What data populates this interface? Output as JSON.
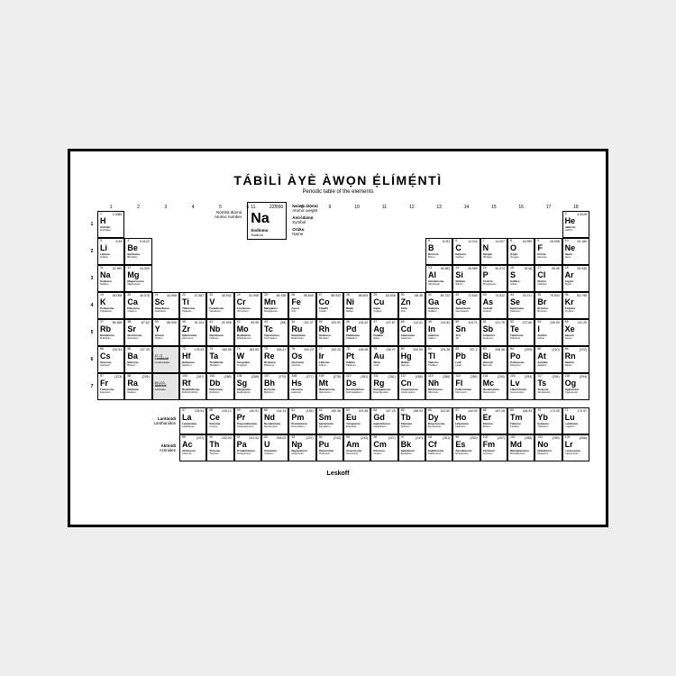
{
  "colors": {
    "page_bg": "#eeeeee",
    "poster_bg": "#ffffff",
    "border": "#000000",
    "shaded": "#e5e5e5"
  },
  "title": {
    "main": "TÁBÌLÌ ÀYÈ ÀWỌN Ẹ́LÍMẸ́NTÌ",
    "sub": "Periodic table of the elements"
  },
  "legend": {
    "atomic_number_label": "Nọ́mbà átọ́mù",
    "atomic_number_sub": "Atomic number",
    "atomic_weight_label": "Ìwúwo átọ́mù",
    "atomic_weight_sub": "Atomic weight",
    "symbol_label": "Àmì-ìdámọ̀",
    "symbol_sub": "Symbol",
    "name_label": "Orúkọ",
    "name_sub": "Name",
    "sample": {
      "num": "11",
      "wt": "22.990",
      "sym": "Na",
      "name1": "Sodíomu",
      "name2": "Sodium"
    }
  },
  "groups": [
    "1",
    "2",
    "3",
    "4",
    "5",
    "6",
    "7",
    "8",
    "9",
    "10",
    "11",
    "12",
    "13",
    "14",
    "15",
    "16",
    "17",
    "18"
  ],
  "periods": [
    "1",
    "2",
    "3",
    "4",
    "5",
    "6",
    "7"
  ],
  "placeholders": {
    "lan": {
      "range": "57-71",
      "name1": "Lantànìdì",
      "name2": "Lanthanides"
    },
    "act": {
      "range": "89-103",
      "name1": "Aktinìdì",
      "name2": "Actinides"
    }
  },
  "series_labels": {
    "lan": {
      "b": "Lantànìdì",
      "s": "Lanthanides"
    },
    "act": {
      "b": "Aktinìdì",
      "s": "Actinides"
    }
  },
  "footer": "Leskoff",
  "elements": [
    {
      "n": 1,
      "s": "H",
      "w": "1.0080",
      "m1": "Áídrójìn",
      "m2": "Hydrogen",
      "p": 1,
      "g": 1
    },
    {
      "n": 2,
      "s": "He",
      "w": "4.0026",
      "m1": "Hélíomu",
      "m2": "Helium",
      "p": 1,
      "g": 18
    },
    {
      "n": 3,
      "s": "Li",
      "w": "6.94",
      "m1": "Lítíomu",
      "m2": "Lithium",
      "p": 2,
      "g": 1
    },
    {
      "n": 4,
      "s": "Be",
      "w": "9.0122",
      "m1": "Bẹrílíomu",
      "m2": "Beryllium",
      "p": 2,
      "g": 2
    },
    {
      "n": 5,
      "s": "B",
      "w": "10.81",
      "m1": "Bóróònì",
      "m2": "Boron",
      "p": 2,
      "g": 13
    },
    {
      "n": 6,
      "s": "C",
      "w": "12.011",
      "m1": "Kárbónì",
      "m2": "Carbon",
      "p": 2,
      "g": 14
    },
    {
      "n": 7,
      "s": "N",
      "w": "14.007",
      "m1": "Nítrójìn",
      "m2": "Nitrogen",
      "p": 2,
      "g": 15
    },
    {
      "n": 8,
      "s": "O",
      "w": "15.999",
      "m1": "Ọ́síjìn",
      "m2": "Oxygen",
      "p": 2,
      "g": 16
    },
    {
      "n": 9,
      "s": "F",
      "w": "18.998",
      "m1": "Flórínì",
      "m2": "Fluorine",
      "p": 2,
      "g": 17
    },
    {
      "n": 10,
      "s": "Ne",
      "w": "20.180",
      "m1": "Néónì",
      "m2": "Neon",
      "p": 2,
      "g": 18
    },
    {
      "n": 11,
      "s": "Na",
      "w": "22.990",
      "m1": "Sodíomu",
      "m2": "Sodium",
      "p": 3,
      "g": 1
    },
    {
      "n": 12,
      "s": "Mg",
      "w": "24.305",
      "m1": "Magnésíomu",
      "m2": "Magnesium",
      "p": 3,
      "g": 2
    },
    {
      "n": 13,
      "s": "Al",
      "w": "26.982",
      "m1": "Alùmíníomu",
      "m2": "Aluminium",
      "p": 3,
      "g": 13
    },
    {
      "n": 14,
      "s": "Si",
      "w": "28.085",
      "m1": "Sílíkọ̀nì",
      "m2": "Silicon",
      "p": 3,
      "g": 14
    },
    {
      "n": 15,
      "s": "P",
      "w": "30.974",
      "m1": "Fósfórù",
      "m2": "Phosphorus",
      "p": 3,
      "g": 15
    },
    {
      "n": 16,
      "s": "S",
      "w": "32.06",
      "m1": "Sọ́lfúrù",
      "m2": "Sulfur",
      "p": 3,
      "g": 16
    },
    {
      "n": 17,
      "s": "Cl",
      "w": "35.45",
      "m1": "Klórínì",
      "m2": "Chlorine",
      "p": 3,
      "g": 17
    },
    {
      "n": 18,
      "s": "Ar",
      "w": "39.948",
      "m1": "Árgónì",
      "m2": "Argon",
      "p": 3,
      "g": 18
    },
    {
      "n": 19,
      "s": "K",
      "w": "39.098",
      "m1": "Potásíomu",
      "m2": "Potassium",
      "p": 4,
      "g": 1
    },
    {
      "n": 20,
      "s": "Ca",
      "w": "40.078",
      "m1": "Kálsíomu",
      "m2": "Calcium",
      "p": 4,
      "g": 2
    },
    {
      "n": 21,
      "s": "Sc",
      "w": "44.956",
      "m1": "Skándíomu",
      "m2": "Scandium",
      "p": 4,
      "g": 3
    },
    {
      "n": 22,
      "s": "Ti",
      "w": "47.867",
      "m1": "Titáníomu",
      "m2": "Titanium",
      "p": 4,
      "g": 4
    },
    {
      "n": 23,
      "s": "V",
      "w": "50.942",
      "m1": "Fanádíomu",
      "m2": "Vanadium",
      "p": 4,
      "g": 5
    },
    {
      "n": 24,
      "s": "Cr",
      "w": "51.996",
      "m1": "Krómíomu",
      "m2": "Chromium",
      "p": 4,
      "g": 6
    },
    {
      "n": 25,
      "s": "Mn",
      "w": "54.938",
      "m1": "Mángánísì",
      "m2": "Manganese",
      "p": 4,
      "g": 7
    },
    {
      "n": 26,
      "s": "Fe",
      "w": "55.845",
      "m1": "Áyọ̀nì",
      "m2": "Iron",
      "p": 4,
      "g": 8
    },
    {
      "n": 27,
      "s": "Co",
      "w": "58.933",
      "m1": "Kóbáltì",
      "m2": "Cobalt",
      "p": 4,
      "g": 9
    },
    {
      "n": 28,
      "s": "Ni",
      "w": "58.693",
      "m1": "Níkẹ́lì",
      "m2": "Nickel",
      "p": 4,
      "g": 10
    },
    {
      "n": 29,
      "s": "Cu",
      "w": "63.546",
      "m1": "Kọ́pà",
      "m2": "Copper",
      "p": 4,
      "g": 11
    },
    {
      "n": 30,
      "s": "Zn",
      "w": "65.38",
      "m1": "Sínkì",
      "m2": "Zinc",
      "p": 4,
      "g": 12
    },
    {
      "n": 31,
      "s": "Ga",
      "w": "69.723",
      "m1": "Gálíomu",
      "m2": "Gallium",
      "p": 4,
      "g": 13
    },
    {
      "n": 32,
      "s": "Ge",
      "w": "72.630",
      "m1": "Jẹ́mẹ́níomu",
      "m2": "Germanium",
      "p": 4,
      "g": 14
    },
    {
      "n": 33,
      "s": "As",
      "w": "74.922",
      "m1": "Áséníkì",
      "m2": "Arsenic",
      "p": 4,
      "g": 15
    },
    {
      "n": 34,
      "s": "Se",
      "w": "78.971",
      "m1": "Sẹléníomu",
      "m2": "Selenium",
      "p": 4,
      "g": 16
    },
    {
      "n": 35,
      "s": "Br",
      "w": "79.904",
      "m1": "Brómínì",
      "m2": "Bromine",
      "p": 4,
      "g": 17
    },
    {
      "n": 36,
      "s": "Kr",
      "w": "83.798",
      "m1": "Kríptónì",
      "m2": "Krypton",
      "p": 4,
      "g": 18
    },
    {
      "n": 37,
      "s": "Rb",
      "w": "85.468",
      "m1": "Rubídíomu",
      "m2": "Rubidium",
      "p": 5,
      "g": 1
    },
    {
      "n": 38,
      "s": "Sr",
      "w": "87.62",
      "m1": "Stróntíomu",
      "m2": "Strontium",
      "p": 5,
      "g": 2
    },
    {
      "n": 39,
      "s": "Y",
      "w": "88.906",
      "m1": "Ítríomu",
      "m2": "Yttrium",
      "p": 5,
      "g": 3
    },
    {
      "n": 40,
      "s": "Zr",
      "w": "91.224",
      "m1": "Sẹ́kóníomu",
      "m2": "Zirconium",
      "p": 5,
      "g": 4
    },
    {
      "n": 41,
      "s": "Nb",
      "w": "92.906",
      "m1": "Naịóbíomu",
      "m2": "Niobium",
      "p": 5,
      "g": 5
    },
    {
      "n": 42,
      "s": "Mo",
      "w": "95.95",
      "m1": "Molíbdénù",
      "m2": "Molybdenum",
      "p": 5,
      "g": 6
    },
    {
      "n": 43,
      "s": "Tc",
      "w": "(98)",
      "m1": "Tẹknísíomu",
      "m2": "Technetium",
      "p": 5,
      "g": 7
    },
    {
      "n": 44,
      "s": "Ru",
      "w": "101.07",
      "m1": "Rutẹ́níomu",
      "m2": "Ruthenium",
      "p": 5,
      "g": 8
    },
    {
      "n": 45,
      "s": "Rh",
      "w": "102.91",
      "m1": "Ródíomu",
      "m2": "Rhodium",
      "p": 5,
      "g": 9
    },
    {
      "n": 46,
      "s": "Pd",
      "w": "106.42",
      "m1": "Paládíomu",
      "m2": "Palladium",
      "p": 5,
      "g": 10
    },
    {
      "n": 47,
      "s": "Ag",
      "w": "107.87",
      "m1": "Fàdákà",
      "m2": "Silver",
      "p": 5,
      "g": 11
    },
    {
      "n": 48,
      "s": "Cd",
      "w": "112.41",
      "m1": "Kádmíomu",
      "m2": "Cadmium",
      "p": 5,
      "g": 12
    },
    {
      "n": 49,
      "s": "In",
      "w": "114.82",
      "m1": "Índíomu",
      "m2": "Indium",
      "p": 5,
      "g": 13
    },
    {
      "n": 50,
      "s": "Sn",
      "w": "118.71",
      "m1": "Tínì",
      "m2": "Tin",
      "p": 5,
      "g": 14
    },
    {
      "n": 51,
      "s": "Sb",
      "w": "121.76",
      "m1": "Ántímónì",
      "m2": "Antimony",
      "p": 5,
      "g": 15
    },
    {
      "n": 52,
      "s": "Te",
      "w": "127.60",
      "m1": "Tẹlúríomu",
      "m2": "Tellurium",
      "p": 5,
      "g": 16
    },
    {
      "n": 53,
      "s": "I",
      "w": "126.90",
      "m1": "Aịódínì",
      "m2": "Iodine",
      "p": 5,
      "g": 17
    },
    {
      "n": 54,
      "s": "Xe",
      "w": "131.29",
      "m1": "Sénónì",
      "m2": "Xenon",
      "p": 5,
      "g": 18
    },
    {
      "n": 55,
      "s": "Cs",
      "w": "132.91",
      "m1": "Sésíomu",
      "m2": "Caesium",
      "p": 6,
      "g": 1
    },
    {
      "n": 56,
      "s": "Ba",
      "w": "137.33",
      "m1": "Báríomu",
      "m2": "Barium",
      "p": 6,
      "g": 2
    },
    {
      "n": 72,
      "s": "Hf",
      "w": "178.49",
      "m1": "Háfníomu",
      "m2": "Hafnium",
      "p": 6,
      "g": 4
    },
    {
      "n": 73,
      "s": "Ta",
      "w": "180.95",
      "m1": "Tántálúmù",
      "m2": "Tantalum",
      "p": 6,
      "g": 5
    },
    {
      "n": 74,
      "s": "W",
      "w": "183.84",
      "m1": "Túngstẹ́nì",
      "m2": "Tungsten",
      "p": 6,
      "g": 6
    },
    {
      "n": 75,
      "s": "Re",
      "w": "186.21",
      "m1": "Réníomu",
      "m2": "Rhenium",
      "p": 6,
      "g": 7
    },
    {
      "n": 76,
      "s": "Os",
      "w": "190.23",
      "m1": "Ọ́smíomu",
      "m2": "Osmium",
      "p": 6,
      "g": 8
    },
    {
      "n": 77,
      "s": "Ir",
      "w": "192.22",
      "m1": "Irídíomu",
      "m2": "Iridium",
      "p": 6,
      "g": 9
    },
    {
      "n": 78,
      "s": "Pt",
      "w": "195.08",
      "m1": "Pílátínì",
      "m2": "Platinum",
      "p": 6,
      "g": 10
    },
    {
      "n": 79,
      "s": "Au",
      "w": "196.97",
      "m1": "Wúrà",
      "m2": "Gold",
      "p": 6,
      "g": 11
    },
    {
      "n": 80,
      "s": "Hg",
      "w": "200.59",
      "m1": "Mẹ́kúrì",
      "m2": "Mercury",
      "p": 6,
      "g": 12
    },
    {
      "n": 81,
      "s": "Tl",
      "w": "204.38",
      "m1": "Tálíomu",
      "m2": "Thallium",
      "p": 6,
      "g": 13
    },
    {
      "n": 82,
      "s": "Pb",
      "w": "207.2",
      "m1": "Lẹ́dì",
      "m2": "Lead",
      "p": 6,
      "g": 14
    },
    {
      "n": 83,
      "s": "Bi",
      "w": "208.98",
      "m1": "Bísmọ́tì",
      "m2": "Bismuth",
      "p": 6,
      "g": 15
    },
    {
      "n": 84,
      "s": "Po",
      "w": "(209)",
      "m1": "Polóníomu",
      "m2": "Polonium",
      "p": 6,
      "g": 16
    },
    {
      "n": 85,
      "s": "At",
      "w": "(210)",
      "m1": "Ástátínì",
      "m2": "Astatine",
      "p": 6,
      "g": 17
    },
    {
      "n": 86,
      "s": "Rn",
      "w": "(222)",
      "m1": "Rádónì",
      "m2": "Radon",
      "p": 6,
      "g": 18
    },
    {
      "n": 87,
      "s": "Fr",
      "w": "(223)",
      "m1": "Fránsíomu",
      "m2": "Francium",
      "p": 7,
      "g": 1
    },
    {
      "n": 88,
      "s": "Ra",
      "w": "(226)",
      "m1": "Rédíomu",
      "m2": "Radium",
      "p": 7,
      "g": 2
    },
    {
      "n": 104,
      "s": "Rf",
      "w": "(267)",
      "m1": "Rudẹfódíomu",
      "m2": "Rutherfordium",
      "p": 7,
      "g": 4
    },
    {
      "n": 105,
      "s": "Db",
      "w": "(268)",
      "m1": "Dúbníomu",
      "m2": "Dubnium",
      "p": 7,
      "g": 5
    },
    {
      "n": 106,
      "s": "Sg",
      "w": "(269)",
      "m1": "Síbọ́gíomu",
      "m2": "Seaborgium",
      "p": 7,
      "g": 6
    },
    {
      "n": 107,
      "s": "Bh",
      "w": "(270)",
      "m1": "Bóríomu",
      "m2": "Bohrium",
      "p": 7,
      "g": 7
    },
    {
      "n": 108,
      "s": "Hs",
      "w": "(277)",
      "m1": "Hásíomu",
      "m2": "Hassium",
      "p": 7,
      "g": 8
    },
    {
      "n": 109,
      "s": "Mt",
      "w": "(278)",
      "m1": "Maịtnẹ́ríomu",
      "m2": "Meitnerium",
      "p": 7,
      "g": 9
    },
    {
      "n": 110,
      "s": "Ds",
      "w": "(281)",
      "m1": "Damstádíomu",
      "m2": "Darmstadtium",
      "p": 7,
      "g": 10
    },
    {
      "n": 111,
      "s": "Rg",
      "w": "(282)",
      "m1": "Rẹntgẹ́níomu",
      "m2": "Roentgenium",
      "p": 7,
      "g": 11
    },
    {
      "n": 112,
      "s": "Cn",
      "w": "(285)",
      "m1": "Kopẹnísíomu",
      "m2": "Copernicium",
      "p": 7,
      "g": 12
    },
    {
      "n": 113,
      "s": "Nh",
      "w": "(286)",
      "m1": "Nìhóníomu",
      "m2": "Nihonium",
      "p": 7,
      "g": 13
    },
    {
      "n": 114,
      "s": "Fl",
      "w": "(289)",
      "m1": "Fẹlẹ́róvíomu",
      "m2": "Flerovium",
      "p": 7,
      "g": 14
    },
    {
      "n": 115,
      "s": "Mc",
      "w": "(290)",
      "m1": "Mọskóvíomu",
      "m2": "Moscovium",
      "p": 7,
      "g": 15
    },
    {
      "n": 116,
      "s": "Lv",
      "w": "(293)",
      "m1": "Lifẹmóríomu",
      "m2": "Livermorium",
      "p": 7,
      "g": 16
    },
    {
      "n": 117,
      "s": "Ts",
      "w": "(294)",
      "m1": "Tẹnẹsínì",
      "m2": "Tennessine",
      "p": 7,
      "g": 17
    },
    {
      "n": 118,
      "s": "Og",
      "w": "(294)",
      "m1": "Ogánẹ́sọ̀nì",
      "m2": "Oganesson",
      "p": 7,
      "g": 18
    }
  ],
  "lanthanides": [
    {
      "n": 57,
      "s": "La",
      "w": "138.91",
      "m1": "Lantánúmù",
      "m2": "Lanthanum"
    },
    {
      "n": 58,
      "s": "Ce",
      "w": "140.12",
      "m1": "Séríomu",
      "m2": "Cerium"
    },
    {
      "n": 59,
      "s": "Pr",
      "w": "140.91",
      "m1": "Praseodímíomu",
      "m2": "Praseodymium"
    },
    {
      "n": 60,
      "s": "Nd",
      "w": "144.24",
      "m1": "Neodímíomu",
      "m2": "Neodymium"
    },
    {
      "n": 61,
      "s": "Pm",
      "w": "(145)",
      "m1": "Promẹ́tíomu",
      "m2": "Promethium"
    },
    {
      "n": 62,
      "s": "Sm",
      "w": "150.36",
      "m1": "Samáríomu",
      "m2": "Samarium"
    },
    {
      "n": 63,
      "s": "Eu",
      "w": "151.96",
      "m1": "Yurópíomu",
      "m2": "Europium"
    },
    {
      "n": 64,
      "s": "Gd",
      "w": "157.25",
      "m1": "Gadolíníomu",
      "m2": "Gadolinium"
    },
    {
      "n": 65,
      "s": "Tb",
      "w": "158.93",
      "m1": "Tẹ́bíomu",
      "m2": "Terbium"
    },
    {
      "n": 66,
      "s": "Dy",
      "w": "162.50",
      "m1": "Disprósíomu",
      "m2": "Dysprosium"
    },
    {
      "n": 67,
      "s": "Ho",
      "w": "164.93",
      "m1": "Hólmíomu",
      "m2": "Holmium"
    },
    {
      "n": 68,
      "s": "Er",
      "w": "167.26",
      "m1": "Ẹ́bíomu",
      "m2": "Erbium"
    },
    {
      "n": 69,
      "s": "Tm",
      "w": "168.93",
      "m1": "Túlíomu",
      "m2": "Thulium"
    },
    {
      "n": 70,
      "s": "Yb",
      "w": "173.05",
      "m1": "Itẹbíomu",
      "m2": "Ytterbium"
    },
    {
      "n": 71,
      "s": "Lu",
      "w": "174.97",
      "m1": "Lutẹ́tíomu",
      "m2": "Lutetium"
    }
  ],
  "actinides": [
    {
      "n": 89,
      "s": "Ac",
      "w": "(227)",
      "m1": "Aktíníomu",
      "m2": "Actinium"
    },
    {
      "n": 90,
      "s": "Th",
      "w": "232.04",
      "m1": "Tóríomu",
      "m2": "Thorium"
    },
    {
      "n": 91,
      "s": "Pa",
      "w": "231.04",
      "m1": "Protaktíníomu",
      "m2": "Protactinium"
    },
    {
      "n": 92,
      "s": "U",
      "w": "238.03",
      "m1": "Uréníomu",
      "m2": "Uranium"
    },
    {
      "n": 93,
      "s": "Np",
      "w": "(237)",
      "m1": "Nẹptúníomu",
      "m2": "Neptunium"
    },
    {
      "n": 94,
      "s": "Pu",
      "w": "(244)",
      "m1": "Plutóníomu",
      "m2": "Plutonium"
    },
    {
      "n": 95,
      "s": "Am",
      "w": "(243)",
      "m1": "Amẹrísíomu",
      "m2": "Americium"
    },
    {
      "n": 96,
      "s": "Cm",
      "w": "(247)",
      "m1": "Kúríomu",
      "m2": "Curium"
    },
    {
      "n": 97,
      "s": "Bk",
      "w": "(247)",
      "m1": "Bẹkẹ́líomu",
      "m2": "Berkelium"
    },
    {
      "n": 98,
      "s": "Cf",
      "w": "(251)",
      "m1": "Kalifóníomu",
      "m2": "Californium"
    },
    {
      "n": 99,
      "s": "Es",
      "w": "(252)",
      "m1": "Aịnstáníomu",
      "m2": "Einsteinium"
    },
    {
      "n": 100,
      "s": "Fm",
      "w": "(257)",
      "m1": "Fẹ́míomu",
      "m2": "Fermium"
    },
    {
      "n": 101,
      "s": "Md",
      "w": "(258)",
      "m1": "Mẹndẹlẹ́víomu",
      "m2": "Mendelevium"
    },
    {
      "n": 102,
      "s": "No",
      "w": "(259)",
      "m1": "Nobẹ́líomu",
      "m2": "Nobelium"
    },
    {
      "n": 103,
      "s": "Lr",
      "w": "(266)",
      "m1": "Lọrẹ́nsíomu",
      "m2": "Lawrencium"
    }
  ]
}
